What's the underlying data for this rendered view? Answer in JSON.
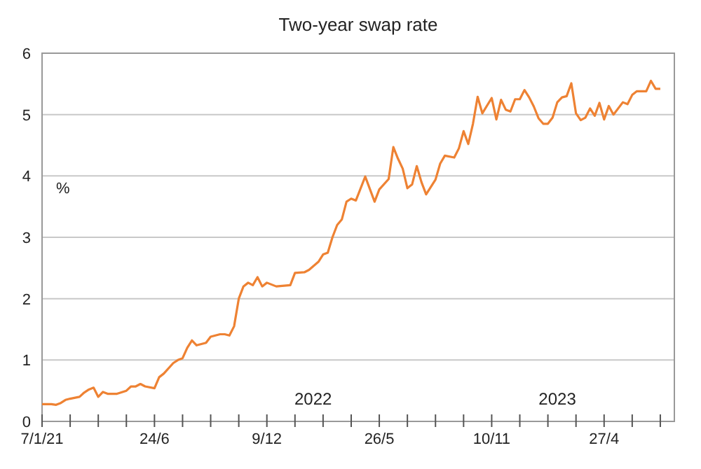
{
  "chart_data": {
    "type": "line",
    "title": "Two-year swap rate",
    "ylabel": "%",
    "x": [
      "2021-01-07",
      "2021-01-21",
      "2021-01-28",
      "2021-02-04",
      "2021-02-11",
      "2021-02-18",
      "2021-03-04",
      "2021-03-11",
      "2021-03-18",
      "2021-03-25",
      "2021-04-01",
      "2021-04-08",
      "2021-04-15",
      "2021-04-29",
      "2021-05-13",
      "2021-05-20",
      "2021-05-27",
      "2021-06-03",
      "2021-06-10",
      "2021-06-24",
      "2021-07-01",
      "2021-07-08",
      "2021-07-22",
      "2021-07-29",
      "2021-08-05",
      "2021-08-12",
      "2021-08-19",
      "2021-08-26",
      "2021-09-09",
      "2021-09-16",
      "2021-09-30",
      "2021-10-07",
      "2021-10-14",
      "2021-10-21",
      "2021-10-28",
      "2021-11-04",
      "2021-11-11",
      "2021-11-18",
      "2021-11-25",
      "2021-12-02",
      "2021-12-09",
      "2021-12-23",
      "2022-01-13",
      "2022-01-20",
      "2022-02-03",
      "2022-02-10",
      "2022-02-24",
      "2022-03-03",
      "2022-03-10",
      "2022-03-17",
      "2022-03-24",
      "2022-03-31",
      "2022-04-07",
      "2022-04-14",
      "2022-04-21",
      "2022-05-05",
      "2022-05-19",
      "2022-05-26",
      "2022-06-09",
      "2022-06-16",
      "2022-06-23",
      "2022-06-30",
      "2022-07-07",
      "2022-07-14",
      "2022-07-21",
      "2022-07-28",
      "2022-08-04",
      "2022-08-18",
      "2022-08-25",
      "2022-09-01",
      "2022-09-15",
      "2022-09-22",
      "2022-09-29",
      "2022-10-06",
      "2022-10-13",
      "2022-10-20",
      "2022-10-27",
      "2022-11-10",
      "2022-11-17",
      "2022-11-24",
      "2022-12-01",
      "2022-12-08",
      "2022-12-15",
      "2022-12-22",
      "2022-12-29",
      "2023-01-05",
      "2023-01-12",
      "2023-01-19",
      "2023-01-26",
      "2023-02-02",
      "2023-02-09",
      "2023-02-16",
      "2023-02-23",
      "2023-03-02",
      "2023-03-09",
      "2023-03-16",
      "2023-03-23",
      "2023-03-30",
      "2023-04-06",
      "2023-04-13",
      "2023-04-20",
      "2023-04-27",
      "2023-05-04",
      "2023-05-11",
      "2023-05-25",
      "2023-06-01",
      "2023-06-08",
      "2023-06-15",
      "2023-06-29",
      "2023-07-06",
      "2023-07-13",
      "2023-07-20"
    ],
    "series": [
      {
        "color": "#ee8233",
        "values": [
          0.28,
          0.28,
          0.27,
          0.3,
          0.35,
          0.37,
          0.4,
          0.47,
          0.52,
          0.55,
          0.4,
          0.48,
          0.45,
          0.45,
          0.5,
          0.57,
          0.57,
          0.61,
          0.57,
          0.54,
          0.72,
          0.78,
          0.95,
          1.0,
          1.03,
          1.2,
          1.32,
          1.24,
          1.28,
          1.38,
          1.42,
          1.42,
          1.4,
          1.55,
          2.0,
          2.2,
          2.26,
          2.22,
          2.35,
          2.2,
          2.26,
          2.2,
          2.22,
          2.42,
          2.43,
          2.47,
          2.6,
          2.72,
          2.75,
          3.0,
          3.2,
          3.29,
          3.58,
          3.63,
          3.6,
          3.99,
          3.58,
          3.78,
          3.95,
          4.47,
          4.28,
          4.12,
          3.8,
          3.86,
          4.16,
          3.9,
          3.7,
          3.94,
          4.2,
          4.33,
          4.3,
          4.45,
          4.73,
          4.52,
          4.85,
          5.29,
          5.02,
          5.27,
          4.92,
          5.24,
          5.08,
          5.05,
          5.25,
          5.25,
          5.4,
          5.28,
          5.13,
          4.94,
          4.85,
          4.85,
          4.95,
          5.2,
          5.28,
          5.3,
          5.51,
          5.02,
          4.91,
          4.95,
          5.1,
          4.98,
          5.19,
          4.92,
          5.14,
          5.0,
          5.2,
          5.17,
          5.32,
          5.38,
          5.38,
          5.55,
          5.42,
          5.42
        ]
      }
    ],
    "xlim": [
      "2021-01-07",
      "2023-08-10"
    ],
    "xticks": [
      {
        "value": "2021-01-07",
        "label": "7/1/21"
      },
      {
        "value": "2021-02-18",
        "label": null
      },
      {
        "value": "2021-04-01",
        "label": null
      },
      {
        "value": "2021-05-13",
        "label": null
      },
      {
        "value": "2021-06-24",
        "label": "24/6"
      },
      {
        "value": "2021-08-05",
        "label": null
      },
      {
        "value": "2021-09-16",
        "label": null
      },
      {
        "value": "2021-10-28",
        "label": null
      },
      {
        "value": "2021-12-09",
        "label": "9/12"
      },
      {
        "value": "2022-01-20",
        "label": null
      },
      {
        "value": "2022-03-03",
        "label": null
      },
      {
        "value": "2022-04-14",
        "label": null
      },
      {
        "value": "2022-05-26",
        "label": "26/5"
      },
      {
        "value": "2022-07-07",
        "label": null
      },
      {
        "value": "2022-08-18",
        "label": null
      },
      {
        "value": "2022-09-29",
        "label": null
      },
      {
        "value": "2022-11-10",
        "label": "10/11"
      },
      {
        "value": "2022-12-22",
        "label": null
      },
      {
        "value": "2023-02-02",
        "label": null
      },
      {
        "value": "2023-03-16",
        "label": null
      },
      {
        "value": "2023-04-27",
        "label": "27/4"
      },
      {
        "value": "2023-06-08",
        "label": null
      },
      {
        "value": "2023-07-20",
        "label": null
      }
    ],
    "ylim": [
      0,
      6
    ],
    "yticks": [
      0,
      1,
      2,
      3,
      4,
      5,
      6
    ],
    "grid": "y",
    "annotations": [
      "2022",
      "2023"
    ]
  }
}
